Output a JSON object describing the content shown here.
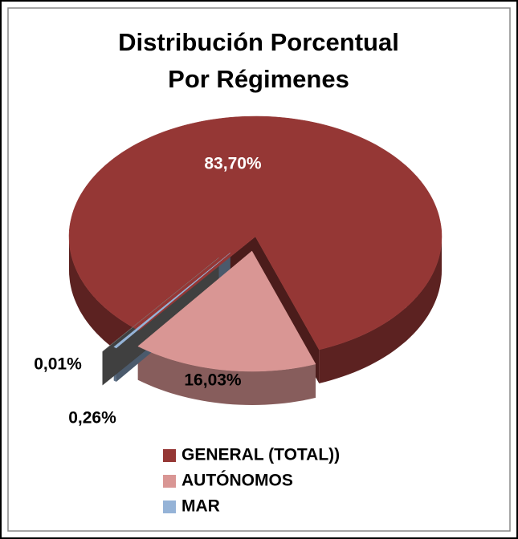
{
  "chart_data": {
    "type": "pie",
    "title": [
      "Distribución Porcentual",
      "Por Régimenes"
    ],
    "categories": [
      "GENERAL (TOTAL))",
      "AUTÓNOMOS",
      "MAR",
      null
    ],
    "values": [
      83.7,
      16.03,
      0.26,
      0.01
    ],
    "value_labels": [
      "83,70%",
      "16,03%",
      "0,26%",
      "0,01%"
    ],
    "colors": [
      "#953735",
      "#d99694",
      "#95b3d7",
      "#7f7f7f"
    ],
    "legend": "bottom"
  }
}
